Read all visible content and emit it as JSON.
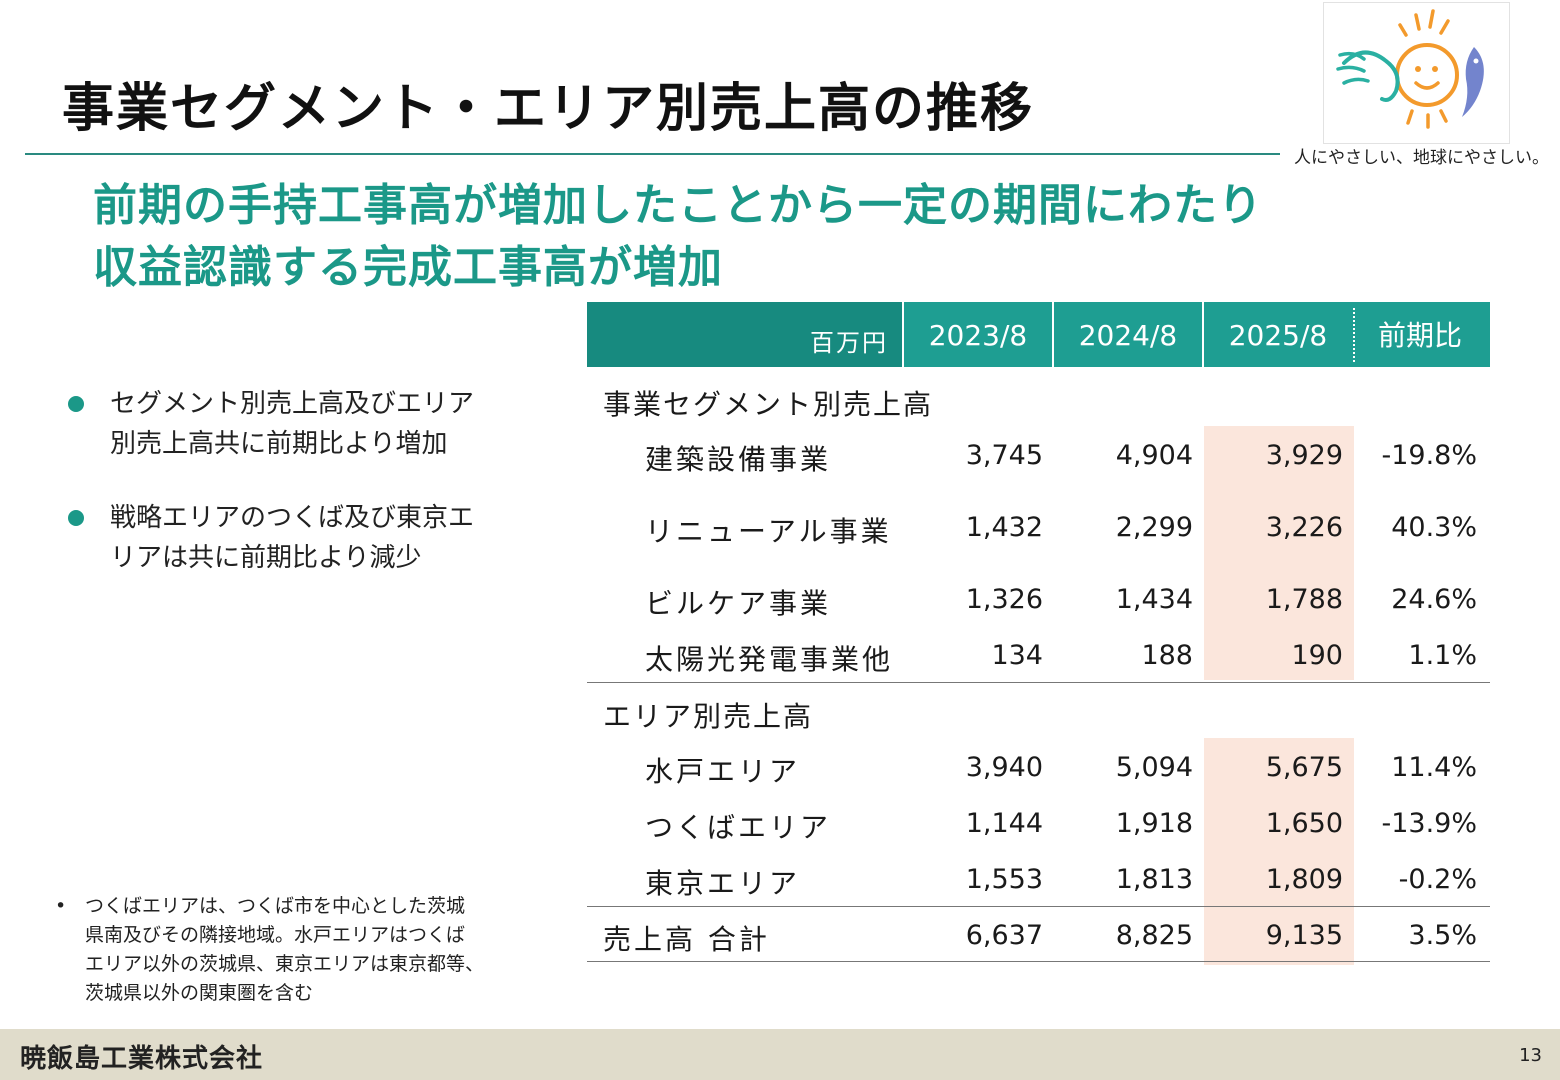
{
  "title": "事業セグメント・エリア別売上高の推移",
  "tagline": "人にやさしい、地球にやさしい。",
  "headline": {
    "line1": "前期の手持工事高が増加したことから一定の期間にわたり",
    "line2": "収益認識する完成工事高が増加"
  },
  "bullets": [
    {
      "line1": "セグメント別売上高及びエリア",
      "line2": "別売上高共に前期比より増加"
    },
    {
      "line1": "戦略エリアのつくば及び東京エ",
      "line2": "リアは共に前期比より減少"
    }
  ],
  "footnote": {
    "mark": "•",
    "lines": [
      "つくばエリアは、つくば市を中心とした茨城",
      "県南及びその隣接地域。水戸エリアはつくば",
      "エリア以外の茨城県、東京エリアは東京都等、",
      "茨城県以外の関東圏を含む"
    ]
  },
  "table": {
    "unit": "百万円",
    "headers": [
      "2023/8",
      "2024/8",
      "2025/8",
      "前期比"
    ],
    "segment_title": "事業セグメント別売上高",
    "segment_rows": [
      {
        "label": "建築設備事業",
        "values": [
          "3,745",
          "4,904",
          "3,929"
        ],
        "change": "-19.8%"
      },
      {
        "label": "リニューアル事業",
        "values": [
          "1,432",
          "2,299",
          "3,226"
        ],
        "change": "40.3%"
      },
      {
        "label": "ビルケア事業",
        "values": [
          "1,326",
          "1,434",
          "1,788"
        ],
        "change": "24.6%"
      },
      {
        "label": "太陽光発電事業他",
        "values": [
          "134",
          "188",
          "190"
        ],
        "change": "1.1%"
      }
    ],
    "area_title": "エリア別売上高",
    "area_rows": [
      {
        "label": "水戸エリア",
        "values": [
          "3,940",
          "5,094",
          "5,675"
        ],
        "change": "11.4%"
      },
      {
        "label": "つくばエリア",
        "values": [
          "1,144",
          "1,918",
          "1,650"
        ],
        "change": "-13.9%"
      },
      {
        "label": "東京エリア",
        "values": [
          "1,553",
          "1,813",
          "1,809"
        ],
        "change": "-0.2%"
      }
    ],
    "total": {
      "label": "売上高 合計",
      "values": [
        "6,637",
        "8,825",
        "9,135"
      ],
      "change": "3.5%"
    }
  },
  "footer": {
    "company": "暁飯島工業株式会社",
    "page": "13"
  },
  "colors": {
    "accent": "#1b9888",
    "header": "#1e9e92",
    "highlight": "#fbe6dc",
    "footer": "#e0dccb"
  }
}
